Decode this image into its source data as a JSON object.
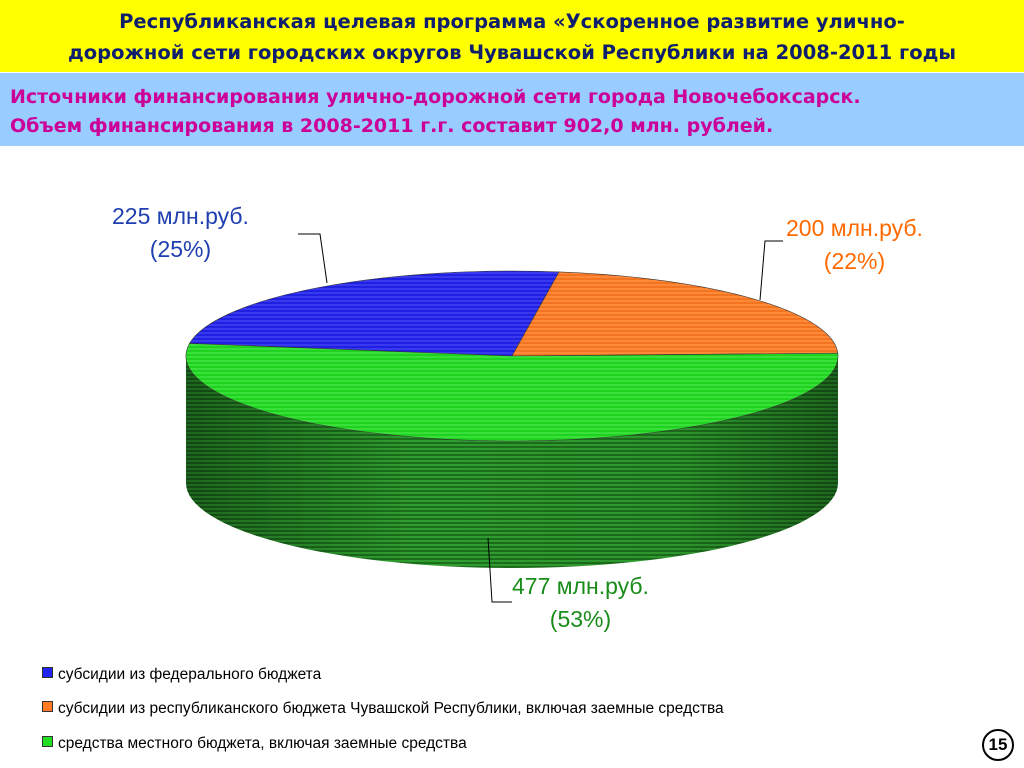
{
  "header": {
    "line1": "Республиканская целевая программа «Ускоренное развитие улично-",
    "line2": "дорожной сети городских округов Чувашской Республики на 2008-2011 годы"
  },
  "subheader": {
    "line1": "Источники финансирования улично-дорожной сети города Новочебоксарск.",
    "line2": "Объем финансирования в 2008-2011 г.г. составит 902,0 млн. рублей."
  },
  "chart_data": {
    "type": "pie",
    "style": "3d",
    "legend_position": "bottom-left",
    "slices": [
      {
        "name": "субсидии из федерального бюджета",
        "value": 225,
        "value_label": "225 млн.руб.",
        "percent_label": "(25%)",
        "color": "#2222ee",
        "text_color": "#1f3fb0"
      },
      {
        "name": "субсидии из республиканского бюджета Чувашской Республики, включая заемные средства",
        "value": 200,
        "value_label": "200 млн.руб.",
        "percent_label": "(22%)",
        "color": "#ff7a22",
        "text_color": "#ff6a00"
      },
      {
        "name": "средства местного бюджета, включая заемные средства",
        "value": 477,
        "value_label": "477 млн.руб.",
        "percent_label": "(53%)",
        "color": "#22dd22",
        "text_color": "#1a8c1a"
      }
    ]
  },
  "page_number": "15"
}
